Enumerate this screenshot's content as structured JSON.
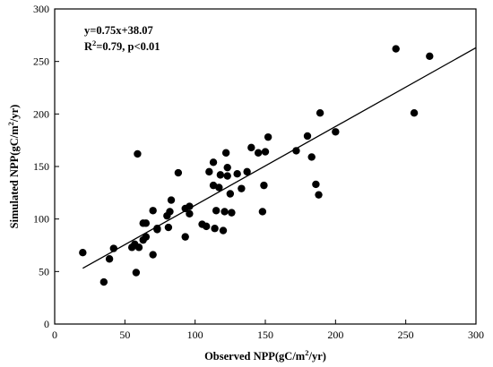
{
  "chart_data": {
    "type": "scatter",
    "xlabel": {
      "prefix": "Observed NPP(gC/m",
      "sup": "2",
      "suffix": "/yr)"
    },
    "ylabel": {
      "prefix": "Simulated NPP(gC/m",
      "sup": "2",
      "suffix": "/yr)"
    },
    "xlim": [
      0,
      300
    ],
    "ylim": [
      0,
      300
    ],
    "xticks": [
      0,
      50,
      100,
      150,
      200,
      250,
      300
    ],
    "yticks": [
      0,
      50,
      100,
      150,
      200,
      250,
      300
    ],
    "grid": false,
    "marker_color": "#000000",
    "annotations": {
      "equation": "y=0.75x+38.07",
      "r2_prefix": "R",
      "r2_sup": "2",
      "r2_suffix": "=0.79, p<0.01"
    },
    "fit_line": {
      "slope": 0.75,
      "intercept": 38.07,
      "x_range": [
        20,
        300
      ]
    },
    "points": [
      [
        20,
        68
      ],
      [
        35,
        40
      ],
      [
        39,
        62
      ],
      [
        42,
        72
      ],
      [
        55,
        73
      ],
      [
        57,
        76
      ],
      [
        58,
        49
      ],
      [
        60,
        73
      ],
      [
        59,
        162
      ],
      [
        63,
        80
      ],
      [
        63,
        96
      ],
      [
        65,
        96
      ],
      [
        65,
        83
      ],
      [
        70,
        108
      ],
      [
        70,
        66
      ],
      [
        73,
        90
      ],
      [
        73,
        91
      ],
      [
        80,
        103
      ],
      [
        81,
        92
      ],
      [
        82,
        107
      ],
      [
        83,
        118
      ],
      [
        88,
        144
      ],
      [
        93,
        110
      ],
      [
        93,
        83
      ],
      [
        96,
        112
      ],
      [
        96,
        105
      ],
      [
        105,
        95
      ],
      [
        108,
        93
      ],
      [
        110,
        145
      ],
      [
        113,
        154
      ],
      [
        113,
        132
      ],
      [
        114,
        91
      ],
      [
        115,
        108
      ],
      [
        117,
        130
      ],
      [
        118,
        142
      ],
      [
        120,
        89
      ],
      [
        121,
        107
      ],
      [
        122,
        163
      ],
      [
        123,
        149
      ],
      [
        123,
        141
      ],
      [
        125,
        124
      ],
      [
        126,
        106
      ],
      [
        130,
        143
      ],
      [
        133,
        129
      ],
      [
        137,
        145
      ],
      [
        140,
        168
      ],
      [
        145,
        163
      ],
      [
        148,
        107
      ],
      [
        149,
        132
      ],
      [
        150,
        164
      ],
      [
        152,
        178
      ],
      [
        172,
        165
      ],
      [
        180,
        179
      ],
      [
        183,
        159
      ],
      [
        186,
        133
      ],
      [
        188,
        123
      ],
      [
        189,
        201
      ],
      [
        200,
        183
      ],
      [
        243,
        262
      ],
      [
        256,
        201
      ],
      [
        267,
        255
      ]
    ]
  }
}
